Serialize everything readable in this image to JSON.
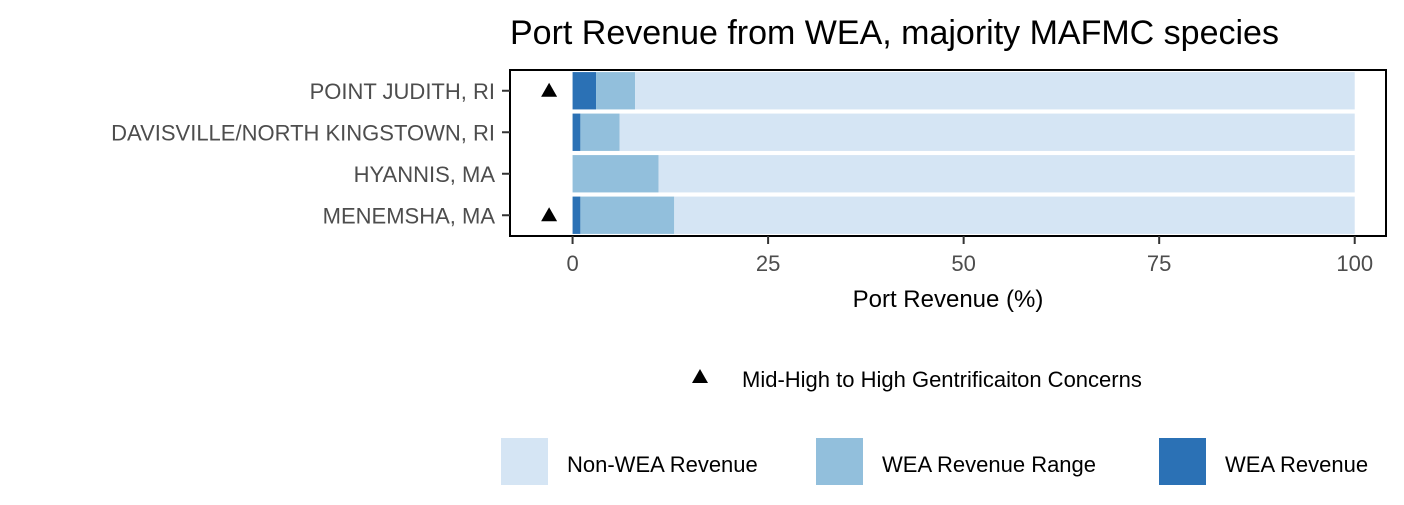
{
  "chart_data": {
    "type": "bar",
    "orientation": "horizontal",
    "stacked": true,
    "title": "Port Revenue from WEA, majority MAFMC species",
    "xlabel": "Port Revenue (%)",
    "ylabel": "",
    "xlim": [
      -8,
      104
    ],
    "x_ticks": [
      0,
      25,
      50,
      75,
      100
    ],
    "categories": [
      "POINT JUDITH, RI",
      "DAVISVILLE/NORTH KINGSTOWN, RI",
      "HYANNIS, MA",
      "MENEMSHA, MA"
    ],
    "series": [
      {
        "name": "WEA Revenue",
        "color": "#2B71B5",
        "values": [
          3,
          1,
          0,
          1
        ]
      },
      {
        "name": "WEA Revenue Range",
        "color": "#92BFDC",
        "values": [
          5,
          5,
          11,
          12
        ]
      },
      {
        "name": "Non-WEA Revenue",
        "color": "#D5E5F4",
        "values": [
          92,
          94,
          89,
          87
        ]
      }
    ],
    "markers": {
      "label": "Mid-High to High Gentrificaiton Concerns",
      "symbol": "triangle",
      "x": -3,
      "categories": [
        "POINT JUDITH, RI",
        "MENEMSHA, MA"
      ]
    },
    "legend": {
      "position": "bottom",
      "fill_order": [
        "Non-WEA Revenue",
        "WEA Revenue Range",
        "WEA Revenue"
      ]
    },
    "grid": false
  }
}
